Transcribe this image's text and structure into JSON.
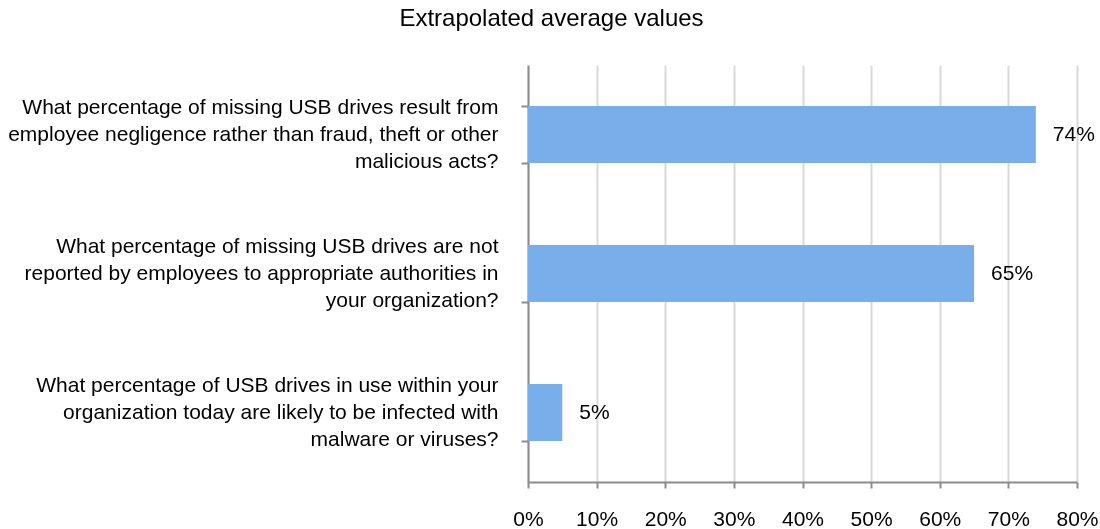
{
  "chart_data": {
    "type": "bar",
    "orientation": "horizontal",
    "title": "Extrapolated average values",
    "categories": [
      "What percentage of missing USB drives result from employee negligence rather than fraud, theft or other malicious acts?",
      "What percentage of missing USB drives are not reported by employees to appropriate authorities in your organization?",
      "What percentage of USB drives in use within your organization today are likely to be infected with malware or viruses?"
    ],
    "values": [
      74,
      65,
      5
    ],
    "color": "#78aee9",
    "value_labels": [
      "74%",
      "65%",
      "5%"
    ],
    "xlim": [
      0,
      80
    ],
    "xticks": [
      {
        "value": 0,
        "label": "0%"
      },
      {
        "value": 10,
        "label": "10%"
      },
      {
        "value": 20,
        "label": "20%"
      },
      {
        "value": 30,
        "label": "30%"
      },
      {
        "value": 40,
        "label": "40%"
      },
      {
        "value": 50,
        "label": "50%"
      },
      {
        "value": 60,
        "label": "60%"
      },
      {
        "value": 70,
        "label": "70%"
      },
      {
        "value": 80,
        "label": "80%"
      }
    ],
    "grid": "x"
  }
}
